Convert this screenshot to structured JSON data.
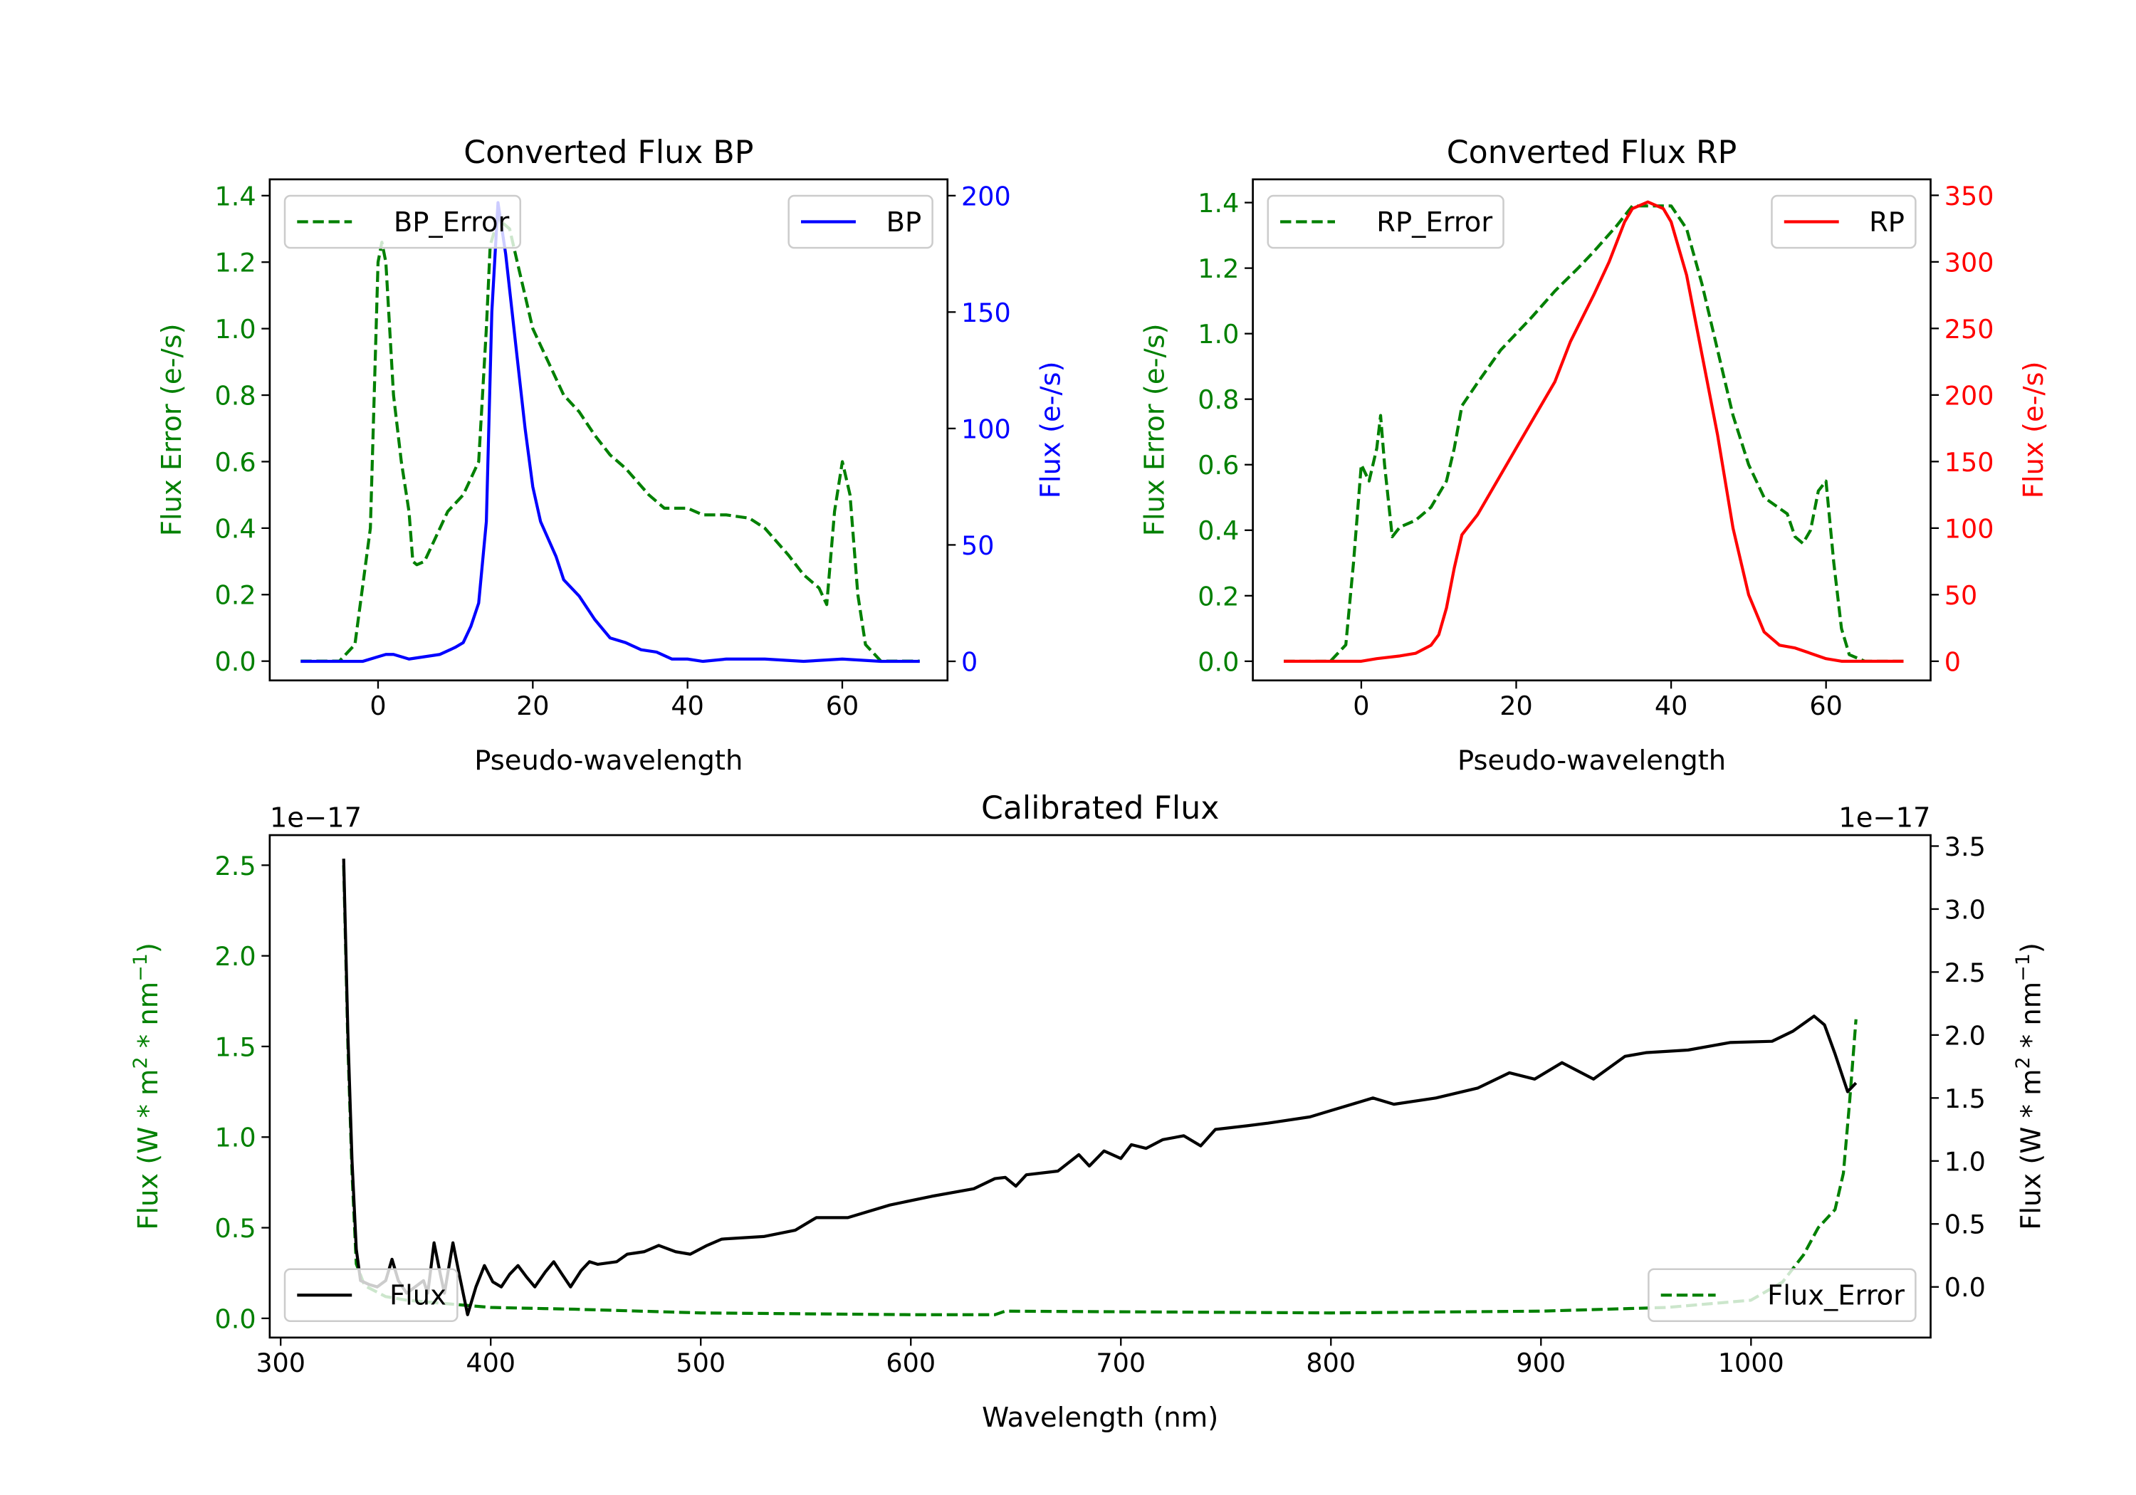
{
  "chart_data": [
    {
      "type": "line",
      "title": "Converted Flux BP",
      "xlabel": "Pseudo-wavelength",
      "ylabel_left": "Flux Error (e-/s)",
      "ylabel_right": "Flux (e-/s)",
      "xlim": [
        -14,
        73.6
      ],
      "ylim_left": [
        -0.058,
        1.449
      ],
      "ylim_right": [
        -8.2,
        207
      ],
      "xticks": [
        0,
        20,
        40,
        60
      ],
      "yticks_left": [
        0.0,
        0.2,
        0.4,
        0.6,
        0.8,
        1.0,
        1.2,
        1.4
      ],
      "yticks_right": [
        0,
        50,
        100,
        150,
        200
      ],
      "left_color": "#008000",
      "right_color": "#0000ff",
      "series": [
        {
          "name": "BP_Error",
          "axis": "left",
          "style": "dashed",
          "color": "#008000",
          "legend": "upper left",
          "x": [
            -10,
            -5,
            -3,
            -1,
            0,
            0.5,
            1,
            2,
            3,
            4,
            4.5,
            5,
            6,
            7,
            9,
            11,
            13,
            14,
            14.5,
            15.5,
            17,
            18,
            20,
            22,
            24,
            26,
            28,
            30,
            32,
            35,
            37,
            40,
            42,
            45,
            48,
            50,
            53,
            55,
            57,
            58,
            59,
            60,
            61,
            62,
            63,
            65,
            70
          ],
          "y": [
            0,
            0,
            0.05,
            0.4,
            1.2,
            1.26,
            1.2,
            0.8,
            0.6,
            0.45,
            0.3,
            0.29,
            0.3,
            0.35,
            0.45,
            0.5,
            0.6,
            1.0,
            1.25,
            1.33,
            1.3,
            1.2,
            1.0,
            0.9,
            0.8,
            0.75,
            0.68,
            0.62,
            0.58,
            0.5,
            0.46,
            0.46,
            0.44,
            0.44,
            0.43,
            0.4,
            0.32,
            0.26,
            0.22,
            0.17,
            0.45,
            0.6,
            0.5,
            0.2,
            0.05,
            0,
            0
          ]
        },
        {
          "name": "BP",
          "axis": "right",
          "style": "solid",
          "color": "#0000ff",
          "legend": "upper right",
          "x": [
            -10,
            -2,
            0,
            1,
            2,
            4,
            6,
            8,
            10,
            11,
            12,
            13,
            14,
            14.7,
            15.5,
            16.5,
            18,
            19,
            20,
            21,
            23,
            24,
            26,
            28,
            30,
            32,
            34,
            36,
            38,
            40,
            42,
            45,
            50,
            55,
            60,
            65,
            70
          ],
          "y": [
            0,
            0,
            2,
            3,
            3,
            1,
            2,
            3,
            6,
            8,
            15,
            25,
            60,
            150,
            197,
            175,
            130,
            100,
            75,
            60,
            45,
            35,
            28,
            18,
            10,
            8,
            5,
            4,
            1,
            1,
            0,
            1,
            1,
            0,
            1,
            0,
            0
          ]
        }
      ]
    },
    {
      "type": "line",
      "title": "Converted Flux RP",
      "xlabel": "Pseudo-wavelength",
      "ylabel_left": "Flux Error (e-/s)",
      "ylabel_right": "Flux (e-/s)",
      "xlim": [
        -14,
        73.5
      ],
      "ylim_left": [
        -0.0585,
        1.471
      ],
      "ylim_right": [
        -14.4,
        362
      ],
      "xticks": [
        0,
        20,
        40,
        60
      ],
      "yticks_left": [
        0.0,
        0.2,
        0.4,
        0.6,
        0.8,
        1.0,
        1.2,
        1.4
      ],
      "yticks_right": [
        0,
        50,
        100,
        150,
        200,
        250,
        300,
        350
      ],
      "left_color": "#008000",
      "right_color": "#ff0000",
      "series": [
        {
          "name": "RP_Error",
          "axis": "left",
          "style": "dashed",
          "color": "#008000",
          "legend": "upper left",
          "x": [
            -10,
            -4,
            -2,
            -1,
            0,
            1,
            2,
            2.5,
            3,
            4,
            5,
            7,
            9,
            11,
            12,
            13,
            15,
            18,
            20,
            22,
            25,
            28,
            30,
            33,
            35,
            37,
            40,
            42,
            44,
            46,
            48,
            50,
            52,
            55,
            56,
            57,
            58,
            59,
            60,
            61,
            62,
            63,
            65,
            70
          ],
          "y": [
            0,
            0,
            0.05,
            0.3,
            0.6,
            0.55,
            0.65,
            0.75,
            0.6,
            0.38,
            0.41,
            0.43,
            0.47,
            0.55,
            0.65,
            0.78,
            0.85,
            0.95,
            1.0,
            1.05,
            1.13,
            1.2,
            1.25,
            1.33,
            1.39,
            1.39,
            1.39,
            1.32,
            1.15,
            0.95,
            0.75,
            0.6,
            0.5,
            0.45,
            0.38,
            0.36,
            0.4,
            0.52,
            0.55,
            0.3,
            0.1,
            0.02,
            0,
            0
          ]
        },
        {
          "name": "RP",
          "axis": "right",
          "style": "solid",
          "color": "#ff0000",
          "legend": "upper right",
          "x": [
            -10,
            0,
            2,
            5,
            7,
            9,
            10,
            11,
            12,
            13,
            15,
            18,
            20,
            23,
            25,
            27,
            30,
            32,
            34,
            35,
            37,
            39,
            40,
            42,
            44,
            46,
            48,
            50,
            52,
            54,
            56,
            58,
            60,
            62,
            70
          ],
          "y": [
            0,
            0,
            2,
            4,
            6,
            12,
            20,
            40,
            70,
            95,
            110,
            140,
            160,
            190,
            210,
            240,
            275,
            300,
            330,
            340,
            345,
            340,
            330,
            290,
            230,
            170,
            100,
            50,
            22,
            12,
            10,
            6,
            2,
            0,
            0
          ]
        }
      ]
    },
    {
      "type": "line",
      "title": "Calibrated Flux",
      "xlabel": "Wavelength (nm)",
      "ylabel_left": "Flux (W * m$^2$ * nm$^{-1}$)",
      "ylabel_right": "Flux (W * m$^2$ * nm$^{-1}$)",
      "offset_left": "1e−17",
      "offset_right": "1e−17",
      "xlim": [
        294.8,
        1085.5
      ],
      "ylim_left": [
        -0.106,
        2.666
      ],
      "ylim_right": [
        -0.402,
        3.587
      ],
      "xticks": [
        300,
        400,
        500,
        600,
        700,
        800,
        900,
        1000
      ],
      "yticks_left": [
        0.0,
        0.5,
        1.0,
        1.5,
        2.0,
        2.5
      ],
      "yticks_right": [
        0.0,
        0.5,
        1.0,
        1.5,
        2.0,
        2.5,
        3.0,
        3.5
      ],
      "left_color": "#008000",
      "right_color": "#000000",
      "series": [
        {
          "name": "Flux_Error",
          "axis": "left",
          "style": "dashed",
          "color": "#008000",
          "legend": "lower right",
          "x": [
            330,
            332,
            334,
            336,
            340,
            350,
            360,
            380,
            400,
            440,
            500,
            600,
            640,
            645,
            800,
            900,
            960,
            1000,
            1015,
            1025,
            1032,
            1040,
            1044,
            1047,
            1050
          ],
          "y": [
            2.5,
            1.5,
            0.8,
            0.3,
            0.18,
            0.12,
            0.1,
            0.08,
            0.06,
            0.05,
            0.03,
            0.02,
            0.02,
            0.04,
            0.03,
            0.04,
            0.06,
            0.1,
            0.2,
            0.35,
            0.5,
            0.6,
            0.8,
            1.2,
            1.65
          ]
        },
        {
          "name": "Flux",
          "axis": "right",
          "style": "solid",
          "color": "#000000",
          "legend": "lower left",
          "x": [
            330,
            332,
            334,
            336,
            338,
            342,
            346,
            350,
            353,
            356,
            360,
            364,
            368,
            370,
            373,
            376,
            378,
            382,
            385,
            389,
            393,
            397,
            401,
            405,
            409,
            413,
            417,
            421,
            426,
            430,
            434,
            438,
            443,
            447,
            451,
            460,
            465,
            473,
            480,
            488,
            495,
            503,
            510,
            530,
            545,
            555,
            570,
            590,
            610,
            630,
            640,
            645,
            650,
            655,
            670,
            680,
            685,
            692,
            700,
            705,
            712,
            720,
            730,
            738,
            745,
            760,
            770,
            790,
            800,
            820,
            830,
            850,
            870,
            885,
            897,
            910,
            925,
            940,
            950,
            970,
            990,
            1010,
            1020,
            1030,
            1035,
            1040,
            1046,
            1050
          ],
          "y": [
            3.4,
            2.0,
            1.0,
            0.3,
            0.05,
            0.02,
            0,
            0.05,
            0.22,
            0.05,
            -0.05,
            0.0,
            0.05,
            -0.05,
            0.35,
            0.1,
            -0.05,
            0.35,
            0.1,
            -0.22,
            0.0,
            0.17,
            0.04,
            0.0,
            0.1,
            0.17,
            0.08,
            0.0,
            0.12,
            0.2,
            0.1,
            0.0,
            0.13,
            0.2,
            0.18,
            0.2,
            0.26,
            0.28,
            0.33,
            0.28,
            0.26,
            0.33,
            0.38,
            0.4,
            0.45,
            0.55,
            0.55,
            0.65,
            0.72,
            0.78,
            0.86,
            0.87,
            0.8,
            0.89,
            0.92,
            1.05,
            0.96,
            1.08,
            1.02,
            1.13,
            1.1,
            1.17,
            1.2,
            1.12,
            1.25,
            1.28,
            1.3,
            1.35,
            1.4,
            1.5,
            1.45,
            1.5,
            1.58,
            1.7,
            1.65,
            1.78,
            1.65,
            1.83,
            1.86,
            1.88,
            1.94,
            1.95,
            2.03,
            2.15,
            2.08,
            1.85,
            1.55,
            1.62
          ]
        }
      ]
    }
  ]
}
